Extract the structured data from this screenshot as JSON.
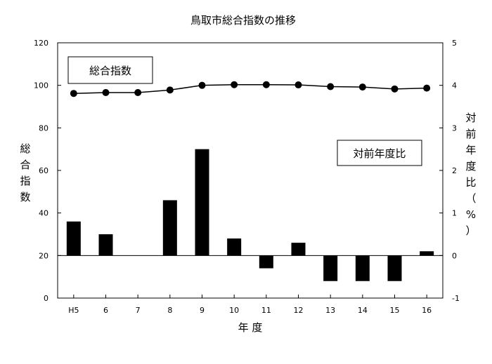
{
  "chart_data": {
    "type": "bar",
    "title": "鳥取市総合指数の推移",
    "xlabel": "年 度",
    "ylabel_left": "総合指数",
    "ylabel_right": "対前年度比（%）",
    "categories": [
      "H5",
      "6",
      "7",
      "8",
      "9",
      "10",
      "11",
      "12",
      "13",
      "14",
      "15",
      "16"
    ],
    "left_axis": {
      "ylim": [
        0,
        120
      ],
      "ticks": [
        "0",
        "20",
        "40",
        "60",
        "80",
        "100",
        "120"
      ]
    },
    "right_axis": {
      "ylim": [
        -1,
        5
      ],
      "ticks": [
        "-1",
        "0",
        "1",
        "2",
        "3",
        "4",
        "5"
      ]
    },
    "series": [
      {
        "name": "総合指数",
        "type": "line",
        "axis": "left",
        "values": [
          96.2,
          96.6,
          96.6,
          97.8,
          100.0,
          100.3,
          100.3,
          100.2,
          99.4,
          99.2,
          98.3,
          98.7
        ]
      },
      {
        "name": "対前年度比",
        "type": "bar",
        "axis": "right",
        "values": [
          0.8,
          0.5,
          0.0,
          1.3,
          2.5,
          0.4,
          -0.3,
          0.3,
          -0.6,
          -0.6,
          -0.6,
          0.1
        ]
      }
    ],
    "grid": false,
    "colors": {
      "bar": "#000000",
      "line": "#000000",
      "marker": "#000000"
    }
  }
}
